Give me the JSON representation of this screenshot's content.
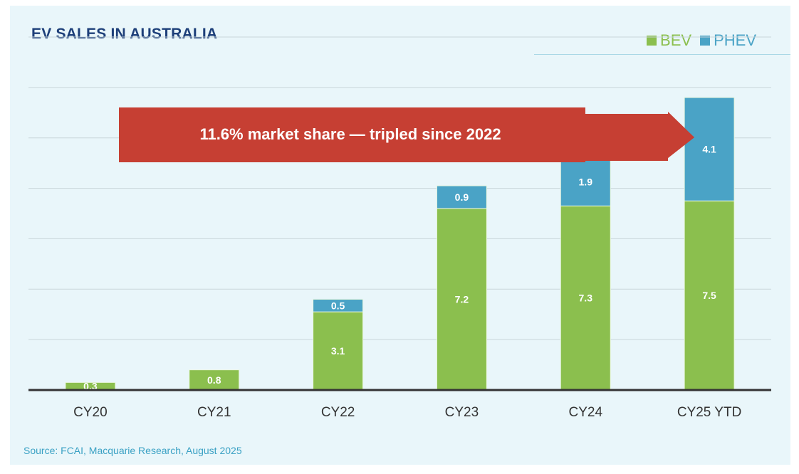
{
  "colors": {
    "bev": "#8bbf4e",
    "phev": "#4aa3c6",
    "arrow": "#c63f33",
    "grid": "#c9d6da",
    "baseline": "#333333"
  },
  "legend": {
    "bev_label": "BEV",
    "phev_label": "PHEV"
  },
  "annotation": {
    "text": "11.6% market share — tripled since 2022"
  },
  "source": "Source: FCAI, Macquarie Research, August 2025",
  "chart_data": {
    "type": "bar",
    "stacked": true,
    "title": "EV SALES IN AUSTRALIA",
    "categories": [
      "CY20",
      "CY21",
      "CY22",
      "CY23",
      "CY24",
      "CY25 YTD"
    ],
    "series": [
      {
        "name": "BEV",
        "values": [
          0.3,
          0.8,
          3.1,
          7.2,
          7.3,
          7.5
        ]
      },
      {
        "name": "PHEV",
        "values": [
          null,
          null,
          0.5,
          0.9,
          1.9,
          4.1
        ]
      }
    ],
    "ylim": [
      0,
      14
    ],
    "grid": true,
    "legend_position": "top-right",
    "xlabel": "",
    "ylabel": ""
  }
}
